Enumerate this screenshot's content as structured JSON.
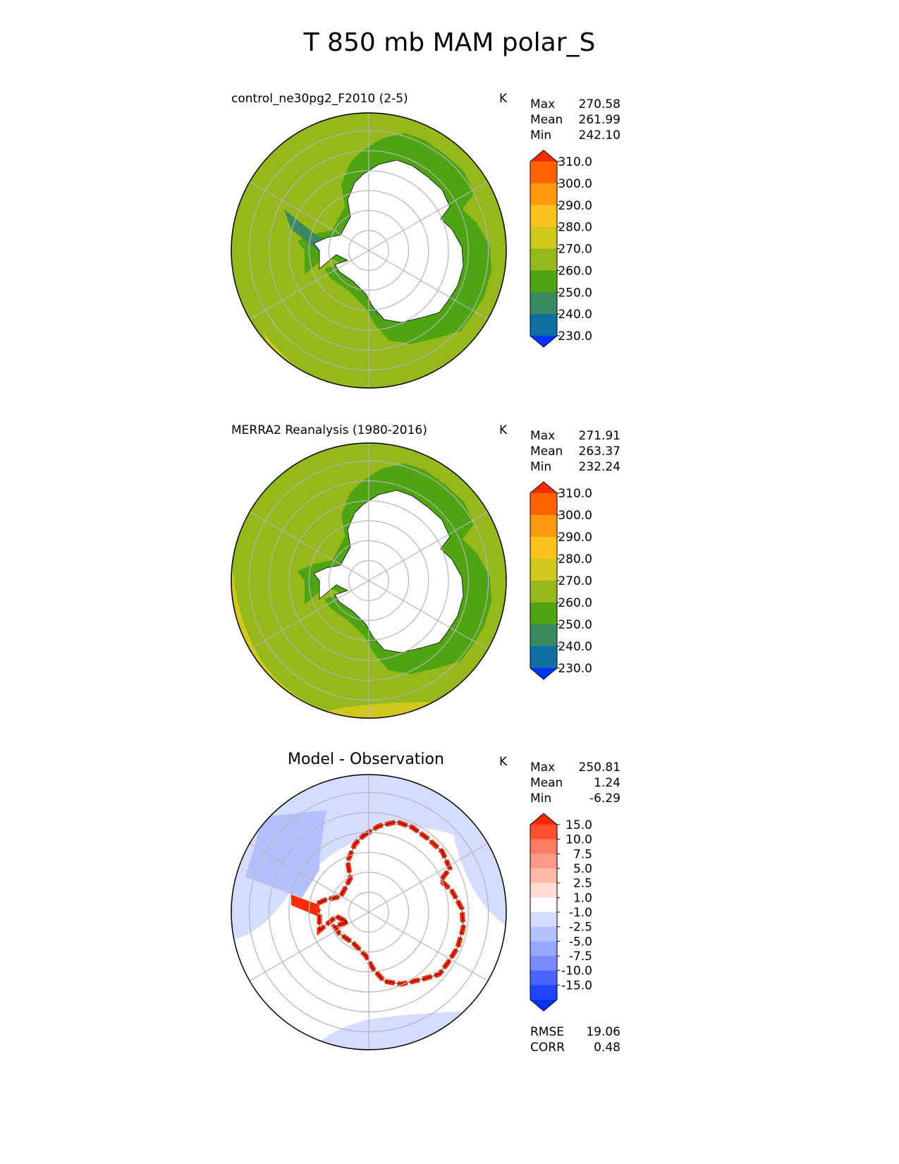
{
  "suptitle": "T 850 mb MAM polar_S",
  "units": "K",
  "panels": [
    {
      "title": "control_ne30pg2_F2010 (2-5)",
      "stats": [
        [
          "Max",
          "270.58"
        ],
        [
          "Mean",
          "261.99"
        ],
        [
          "Min",
          "242.10"
        ]
      ],
      "colorbar": {
        "labels": [
          "310.0",
          "300.0",
          "290.0",
          "280.0",
          "270.0",
          "260.0",
          "250.0",
          "240.0",
          "230.0"
        ],
        "colors": [
          "#ff2a00",
          "#ff6400",
          "#ff9a10",
          "#fcc31e",
          "#d1c81e",
          "#95b81a",
          "#4ea511",
          "#3a8960",
          "#0f6fa5",
          "#0033ff"
        ]
      }
    },
    {
      "title": "MERRA2 Reanalysis (1980-2016)",
      "stats": [
        [
          "Max",
          "271.91"
        ],
        [
          "Mean",
          "263.37"
        ],
        [
          "Min",
          "232.24"
        ]
      ],
      "colorbar": {
        "labels": [
          "310.0",
          "300.0",
          "290.0",
          "280.0",
          "270.0",
          "260.0",
          "250.0",
          "240.0",
          "230.0"
        ],
        "colors": [
          "#ff2a00",
          "#ff6400",
          "#ff9a10",
          "#fcc31e",
          "#d1c81e",
          "#95b81a",
          "#4ea511",
          "#3a8960",
          "#0f6fa5",
          "#0033ff"
        ]
      }
    },
    {
      "title": "Model - Observation",
      "stats": [
        [
          "Max",
          "250.81"
        ],
        [
          "Mean",
          "1.24"
        ],
        [
          "Min",
          "-6.29"
        ]
      ],
      "colorbar": {
        "labels": [
          "15.0",
          "10.0",
          "7.5",
          "5.0",
          "2.5",
          "1.0",
          "-1.0",
          "-2.5",
          "-5.0",
          "-7.5",
          "-10.0",
          "-15.0"
        ],
        "colors": [
          "#ff2a00",
          "#ff5032",
          "#ff7c64",
          "#ff9a88",
          "#ffbaa8",
          "#ffdcd4",
          "#ffffff",
          "#d4dcff",
          "#b4c0ff",
          "#96a8ff",
          "#7a8cff",
          "#4a64ff",
          "#1e46ff",
          "#0033ff"
        ]
      },
      "extra_stats": [
        [
          "RMSE",
          "19.06"
        ],
        [
          "CORR",
          "0.48"
        ]
      ]
    }
  ],
  "chart_data": [
    {
      "type": "heatmap",
      "title": "control_ne30pg2_F2010 (2-5)",
      "projection": "south polar stereographic",
      "units": "K",
      "levels": [
        230,
        240,
        250,
        260,
        270,
        280,
        290,
        300,
        310
      ],
      "stats": {
        "max": 270.58,
        "mean": 261.99,
        "min": 242.1
      }
    },
    {
      "type": "heatmap",
      "title": "MERRA2 Reanalysis (1980-2016)",
      "projection": "south polar stereographic",
      "units": "K",
      "levels": [
        230,
        240,
        250,
        260,
        270,
        280,
        290,
        300,
        310
      ],
      "stats": {
        "max": 271.91,
        "mean": 263.37,
        "min": 232.24
      }
    },
    {
      "type": "heatmap",
      "title": "Model - Observation",
      "projection": "south polar stereographic",
      "units": "K",
      "levels": [
        -15,
        -10,
        -7.5,
        -5,
        -2.5,
        -1,
        1,
        2.5,
        5,
        7.5,
        10,
        15
      ],
      "stats": {
        "max": 250.81,
        "mean": 1.24,
        "min": -6.29,
        "rmse": 19.06,
        "corr": 0.48
      }
    }
  ]
}
